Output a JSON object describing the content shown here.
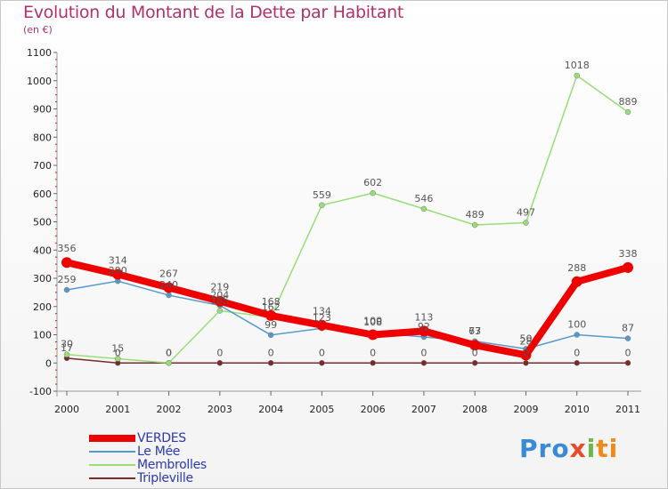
{
  "title": "Evolution du Montant de la Dette par Habitant",
  "unit_label": "(en €)",
  "logo_text": [
    "Pro",
    "x",
    "i",
    "ti"
  ],
  "chart_data": {
    "type": "line",
    "title": "Evolution du Montant de la Dette par Habitant",
    "subtitle": "(en €)",
    "xlabel": "",
    "ylabel": "",
    "ylim": [
      -100,
      1100
    ],
    "yticks": [
      -100,
      0,
      100,
      200,
      300,
      400,
      500,
      600,
      700,
      800,
      900,
      1000,
      1100
    ],
    "categories": [
      "2000",
      "2001",
      "2002",
      "2003",
      "2004",
      "2005",
      "2006",
      "2007",
      "2008",
      "2009",
      "2010",
      "2011"
    ],
    "grid": false,
    "legend_position": "bottom-left",
    "series": [
      {
        "name": "Tripleville",
        "color": "#7a2a2a",
        "width": 1.5,
        "values": [
          17,
          0,
          0,
          0,
          0,
          0,
          0,
          0,
          0,
          0,
          0,
          0
        ]
      },
      {
        "name": "Membrolles",
        "color": "#99dd77",
        "width": 1.5,
        "values": [
          30,
          15,
          0,
          185,
          162,
          559,
          602,
          546,
          489,
          497,
          1018,
          889
        ]
      },
      {
        "name": "Le Mée",
        "color": "#5599cc",
        "width": 1.5,
        "values": [
          259,
          290,
          240,
          204,
          99,
          123,
          108,
          92,
          77,
          50,
          100,
          87
        ]
      },
      {
        "name": "VERDES",
        "color": "#ee0000",
        "width": 8,
        "values": [
          356,
          314,
          267,
          219,
          168,
          134,
          100,
          113,
          63,
          28,
          288,
          338
        ]
      }
    ],
    "legend_order": [
      "VERDES",
      "Le Mée",
      "Membrolles",
      "Tripleville"
    ],
    "data_labels": [
      {
        "series": "VERDES",
        "labels": [
          "356",
          "314",
          "267",
          "219",
          "168",
          "134",
          "100",
          "113",
          "63",
          "28",
          "288",
          "338"
        ]
      },
      {
        "series": "Le Mée",
        "labels": [
          "259",
          "290",
          "240",
          "204",
          "99",
          "123",
          "108",
          "92",
          "77",
          "50",
          "100",
          "87"
        ]
      },
      {
        "series": "Membrolles",
        "labels": [
          "30",
          "15",
          "0",
          "185",
          "162",
          "559",
          "602",
          "546",
          "489",
          "497",
          "1018",
          "889"
        ]
      },
      {
        "series": "Tripleville",
        "labels": [
          "17",
          "0",
          "0",
          "0",
          "0",
          "0",
          "0",
          "0",
          "0",
          "0",
          "0",
          "0"
        ]
      }
    ]
  }
}
